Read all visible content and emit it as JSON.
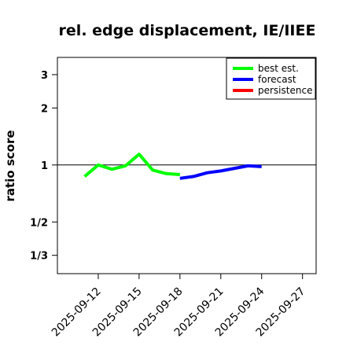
{
  "chart_data": {
    "type": "line",
    "title": "rel. edge displacement, IE/IIEE",
    "ylabel": "ratio score",
    "xlabel": "",
    "y_scale": "log",
    "ylim": [
      0.2667,
      3.7
    ],
    "xlim": [
      "2025-09-09",
      "2025-09-28"
    ],
    "reference_line": 1,
    "yticks": [
      {
        "value": 3,
        "label": "3"
      },
      {
        "value": 2,
        "label": "2"
      },
      {
        "value": 1,
        "label": "1"
      },
      {
        "value": 0.5,
        "label": "1/2"
      },
      {
        "value": 0.3333,
        "label": "1/3"
      }
    ],
    "xticks": [
      {
        "date": "2025-09-12",
        "label": "2025-09-12",
        "color": "#000000"
      },
      {
        "date": "2025-09-15",
        "label": "2025-09-15",
        "color": "#000000"
      },
      {
        "date": "2025-09-18",
        "label": "2025-09-18",
        "color": "#228B22"
      },
      {
        "date": "2025-09-21",
        "label": "2025-09-21",
        "color": "#000000"
      },
      {
        "date": "2025-09-24",
        "label": "2025-09-24",
        "color": "#000000"
      },
      {
        "date": "2025-09-27",
        "label": "2025-09-27",
        "color": "#000000"
      }
    ],
    "legend_position": "top-right",
    "series": [
      {
        "name": "best est.",
        "color": "#00ff00",
        "x": [
          "2025-09-11",
          "2025-09-12",
          "2025-09-13",
          "2025-09-14",
          "2025-09-15",
          "2025-09-16",
          "2025-09-17",
          "2025-09-18"
        ],
        "y": [
          0.87,
          1.0,
          0.95,
          0.99,
          1.14,
          0.94,
          0.9,
          0.89
        ]
      },
      {
        "name": "forecast",
        "color": "#0000ff",
        "x": [
          "2025-09-18",
          "2025-09-19",
          "2025-09-20",
          "2025-09-21",
          "2025-09-22",
          "2025-09-23",
          "2025-09-24"
        ],
        "y": [
          0.85,
          0.87,
          0.91,
          0.93,
          0.96,
          0.99,
          0.98
        ]
      },
      {
        "name": "persistence",
        "color": "#ff0000",
        "x": [],
        "y": []
      }
    ]
  }
}
